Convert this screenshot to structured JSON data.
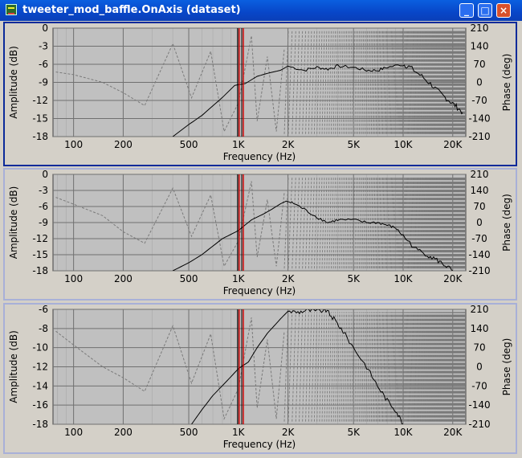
{
  "window": {
    "title": "tweeter_mod_baffle.OnAxis (dataset)"
  },
  "title_buttons": {
    "minimize": "_",
    "maximize": "□",
    "close": "×"
  },
  "axis_labels": {
    "x": "Frequency (Hz)",
    "y_left": "Amplitude (dB)",
    "y_right": "Phase (deg)"
  },
  "chart_data": [
    {
      "type": "line",
      "x_scale": "log",
      "xlabel": "Frequency (Hz)",
      "ylabel": "Amplitude (dB)",
      "y2label": "Phase (deg)",
      "xlim": [
        75,
        24000
      ],
      "ylim": [
        -18,
        0
      ],
      "y2lim": [
        -210,
        210
      ],
      "x_ticks": [
        "100",
        "200",
        "500",
        "1K",
        "2K",
        "5K",
        "10K",
        "20K"
      ],
      "y_ticks": [
        "0",
        "-3",
        "-6",
        "-9",
        "-12",
        "-15",
        "-18"
      ],
      "y2_ticks": [
        "210",
        "140",
        "70",
        "0",
        "-70",
        "-140",
        "-210"
      ],
      "grid": true,
      "markers": [
        1000,
        1060
      ],
      "series": [
        {
          "values": [
            [
              400,
              -18
            ],
            [
              500,
              -16
            ],
            [
              600,
              -14.5
            ],
            [
              800,
              -11.5
            ],
            [
              950,
              -9.5
            ],
            [
              1100,
              -9.2
            ],
            [
              1300,
              -8
            ],
            [
              1500,
              -7.5
            ],
            [
              1800,
              -7
            ],
            [
              2000,
              -6.3
            ],
            [
              2500,
              -7
            ],
            [
              3000,
              -6.5
            ],
            [
              3500,
              -6.8
            ],
            [
              4000,
              -6.3
            ],
            [
              5000,
              -6.5
            ],
            [
              6000,
              -7
            ],
            [
              7000,
              -7
            ],
            [
              8000,
              -6.5
            ],
            [
              10000,
              -6
            ],
            [
              11000,
              -6.5
            ],
            [
              13000,
              -8
            ],
            [
              15000,
              -9.5
            ],
            [
              17000,
              -11
            ],
            [
              19000,
              -12
            ],
            [
              21000,
              -13
            ],
            [
              23000,
              -14
            ]
          ]
        },
        {
          "values": [
            [
              78,
              40
            ],
            [
              100,
              30
            ],
            [
              150,
              0
            ],
            [
              200,
              -40
            ],
            [
              270,
              -90
            ],
            [
              400,
              150
            ],
            [
              520,
              -60
            ],
            [
              680,
              120
            ],
            [
              820,
              -190
            ],
            [
              1000,
              -80
            ],
            [
              1200,
              180
            ],
            [
              1300,
              -150
            ],
            [
              1500,
              100
            ],
            [
              1700,
              -190
            ],
            [
              1900,
              130
            ]
          ]
        }
      ]
    },
    {
      "type": "line",
      "x_scale": "log",
      "xlabel": "Frequency (Hz)",
      "ylabel": "Amplitude (dB)",
      "y2label": "Phase (deg)",
      "xlim": [
        75,
        24000
      ],
      "ylim": [
        -18,
        0
      ],
      "y2lim": [
        -210,
        210
      ],
      "x_ticks": [
        "100",
        "200",
        "500",
        "1K",
        "2K",
        "5K",
        "10K",
        "20K"
      ],
      "y_ticks": [
        "0",
        "-3",
        "-6",
        "-9",
        "-12",
        "-15",
        "-18"
      ],
      "y2_ticks": [
        "210",
        "140",
        "70",
        "0",
        "-70",
        "-140",
        "-210"
      ],
      "grid": true,
      "markers": [
        1000,
        1060
      ],
      "series": [
        {
          "values": [
            [
              400,
              -18
            ],
            [
              500,
              -16.5
            ],
            [
              600,
              -15
            ],
            [
              800,
              -12
            ],
            [
              1000,
              -10.5
            ],
            [
              1200,
              -8.5
            ],
            [
              1400,
              -7.5
            ],
            [
              1600,
              -6.5
            ],
            [
              1800,
              -5.5
            ],
            [
              1950,
              -5
            ],
            [
              2200,
              -5.5
            ],
            [
              2500,
              -6.5
            ],
            [
              3000,
              -8
            ],
            [
              3500,
              -9
            ],
            [
              4000,
              -8.5
            ],
            [
              5000,
              -8.5
            ],
            [
              6000,
              -9
            ],
            [
              7000,
              -9
            ],
            [
              8000,
              -9.5
            ],
            [
              9000,
              -10
            ],
            [
              10000,
              -11.5
            ],
            [
              12000,
              -14
            ],
            [
              14000,
              -15
            ],
            [
              16000,
              -16
            ],
            [
              18000,
              -17
            ],
            [
              20000,
              -18
            ]
          ]
        },
        {
          "values": [
            [
              78,
              110
            ],
            [
              100,
              80
            ],
            [
              150,
              30
            ],
            [
              200,
              -40
            ],
            [
              270,
              -90
            ],
            [
              400,
              150
            ],
            [
              520,
              -60
            ],
            [
              680,
              120
            ],
            [
              820,
              -190
            ],
            [
              1000,
              -80
            ],
            [
              1200,
              180
            ],
            [
              1300,
              -150
            ],
            [
              1500,
              100
            ],
            [
              1700,
              -190
            ],
            [
              1900,
              130
            ]
          ]
        }
      ]
    },
    {
      "type": "line",
      "x_scale": "log",
      "xlabel": "Frequency (Hz)",
      "ylabel": "Amplitude (dB)",
      "y2label": "Phase (deg)",
      "xlim": [
        75,
        24000
      ],
      "ylim": [
        -18,
        -6
      ],
      "y2lim": [
        -210,
        210
      ],
      "x_ticks": [
        "100",
        "200",
        "500",
        "1K",
        "2K",
        "5K",
        "10K",
        "20K"
      ],
      "y_ticks": [
        "-6",
        "-8",
        "-10",
        "-12",
        "-14",
        "-16",
        "-18"
      ],
      "y2_ticks": [
        "210",
        "140",
        "70",
        "0",
        "-70",
        "-140",
        "-210"
      ],
      "grid": true,
      "markers": [
        1000,
        1060
      ],
      "series": [
        {
          "values": [
            [
              520,
              -18
            ],
            [
              600,
              -16.5
            ],
            [
              700,
              -15
            ],
            [
              850,
              -13.5
            ],
            [
              1000,
              -12.2
            ],
            [
              1150,
              -11.5
            ],
            [
              1300,
              -10
            ],
            [
              1500,
              -8.5
            ],
            [
              1800,
              -7
            ],
            [
              2000,
              -6.2
            ],
            [
              2300,
              -6.3
            ],
            [
              2600,
              -6.1
            ],
            [
              3000,
              -6.2
            ],
            [
              3400,
              -6.1
            ],
            [
              3800,
              -7
            ],
            [
              4200,
              -8
            ],
            [
              5000,
              -10
            ],
            [
              6000,
              -12
            ],
            [
              7000,
              -14
            ],
            [
              8000,
              -15.5
            ],
            [
              9000,
              -16.5
            ],
            [
              10000,
              -18
            ]
          ]
        },
        {
          "values": [
            [
              78,
              130
            ],
            [
              100,
              80
            ],
            [
              150,
              0
            ],
            [
              200,
              -40
            ],
            [
              270,
              -90
            ],
            [
              400,
              150
            ],
            [
              520,
              -60
            ],
            [
              680,
              120
            ],
            [
              820,
              -190
            ],
            [
              1000,
              -80
            ],
            [
              1200,
              180
            ],
            [
              1300,
              -150
            ],
            [
              1500,
              100
            ],
            [
              1700,
              -190
            ],
            [
              1900,
              130
            ]
          ]
        }
      ]
    }
  ]
}
